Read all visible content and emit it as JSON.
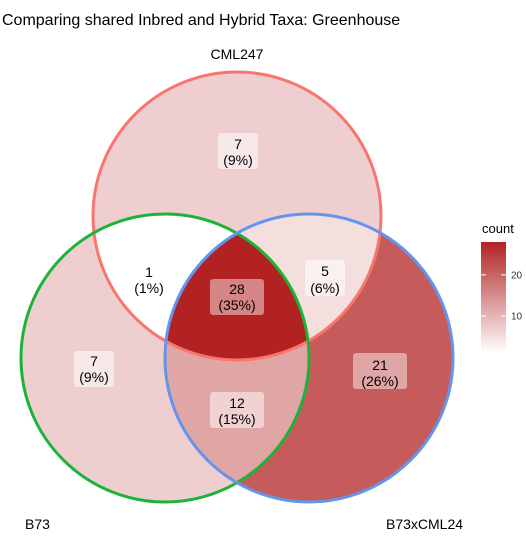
{
  "title": "Comparing shared Inbred and Hybrid Taxa: Greenhouse",
  "sets": [
    {
      "id": "cml247",
      "label": "CML247",
      "color": "#f8766d"
    },
    {
      "id": "b73",
      "label": "B73",
      "color": "#1db339"
    },
    {
      "id": "b73xcml24",
      "label": "B73xCML24",
      "color": "#6495ed"
    }
  ],
  "regions": [
    {
      "id": "cml247-only",
      "count": "7",
      "percent": "(9%)",
      "value": 7
    },
    {
      "id": "cml247-b73",
      "count": "1",
      "percent": "(1%)",
      "value": 1
    },
    {
      "id": "cml247-b73xcml24",
      "count": "5",
      "percent": "(6%)",
      "value": 5
    },
    {
      "id": "all-three",
      "count": "28",
      "percent": "(35%)",
      "value": 28
    },
    {
      "id": "b73-only",
      "count": "7",
      "percent": "(9%)",
      "value": 7
    },
    {
      "id": "b73xcml24-only",
      "count": "21",
      "percent": "(26%)",
      "value": 21
    },
    {
      "id": "b73-b73xcml24",
      "count": "12",
      "percent": "(15%)",
      "value": 12
    }
  ],
  "legend": {
    "title": "count",
    "min": 1,
    "max": 28,
    "ticks": [
      {
        "label": "10",
        "value": 10
      },
      {
        "label": "20",
        "value": 20
      }
    ],
    "color_low": "#ffffff",
    "color_high": "#b22222"
  }
}
